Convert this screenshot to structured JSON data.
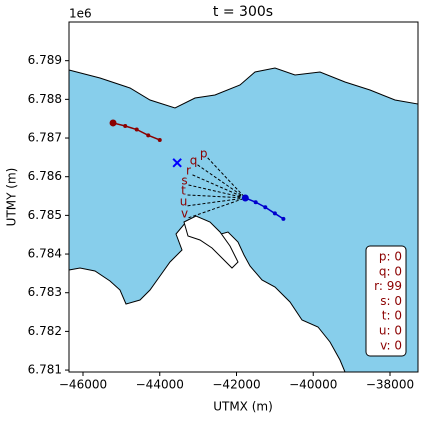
{
  "chart_data": {
    "type": "track-map",
    "title": "t = 300s",
    "x_label": "UTMX (m)",
    "y_label": "UTMY (m)",
    "y_offset_label": "1e6",
    "xlim": [
      -46365,
      -37270
    ],
    "ylim": [
      6.78095,
      6.79
    ],
    "xticks": [
      {
        "value": -46000,
        "label": "−46000"
      },
      {
        "value": -44000,
        "label": "−44000"
      },
      {
        "value": -42000,
        "label": "−42000"
      },
      {
        "value": -40000,
        "label": "−40000"
      },
      {
        "value": -38000,
        "label": "−38000"
      }
    ],
    "yticks": [
      6.781,
      6.782,
      6.783,
      6.784,
      6.785,
      6.786,
      6.787,
      6.788,
      6.789
    ],
    "series": [
      {
        "color": "#8b0000",
        "x": [
          -45217,
          -44900,
          -44600,
          -44300,
          -44000
        ],
        "values": [
          6.78739,
          6.78731,
          6.78722,
          6.78707,
          6.78695
        ]
      },
      {
        "color": "#0000cd",
        "x": [
          -41770,
          -41500,
          -41250,
          -41000,
          -40778
        ],
        "values": [
          6.78545,
          6.78534,
          6.78521,
          6.78505,
          6.78491
        ]
      }
    ],
    "marker": {
      "color": "#0000ff",
      "x": -43546,
      "y": 6.78636
    },
    "annotations": [
      {
        "text": "p",
        "x": -42855,
        "y": 6.78659
      },
      {
        "text": "q",
        "x": -43120,
        "y": 6.78641
      },
      {
        "text": "r",
        "x": -43250,
        "y": 6.78615
      },
      {
        "text": "s",
        "x": -43355,
        "y": 6.78589
      },
      {
        "text": "t",
        "x": -43380,
        "y": 6.78563
      },
      {
        "text": "u",
        "x": -43380,
        "y": 6.78535
      },
      {
        "text": "v",
        "x": -43355,
        "y": 6.78504
      }
    ],
    "status_box": [
      "p: 0",
      "q: 0",
      "r: 99",
      "s: 0",
      "t: 0",
      "u: 0",
      "v: 0"
    ]
  }
}
